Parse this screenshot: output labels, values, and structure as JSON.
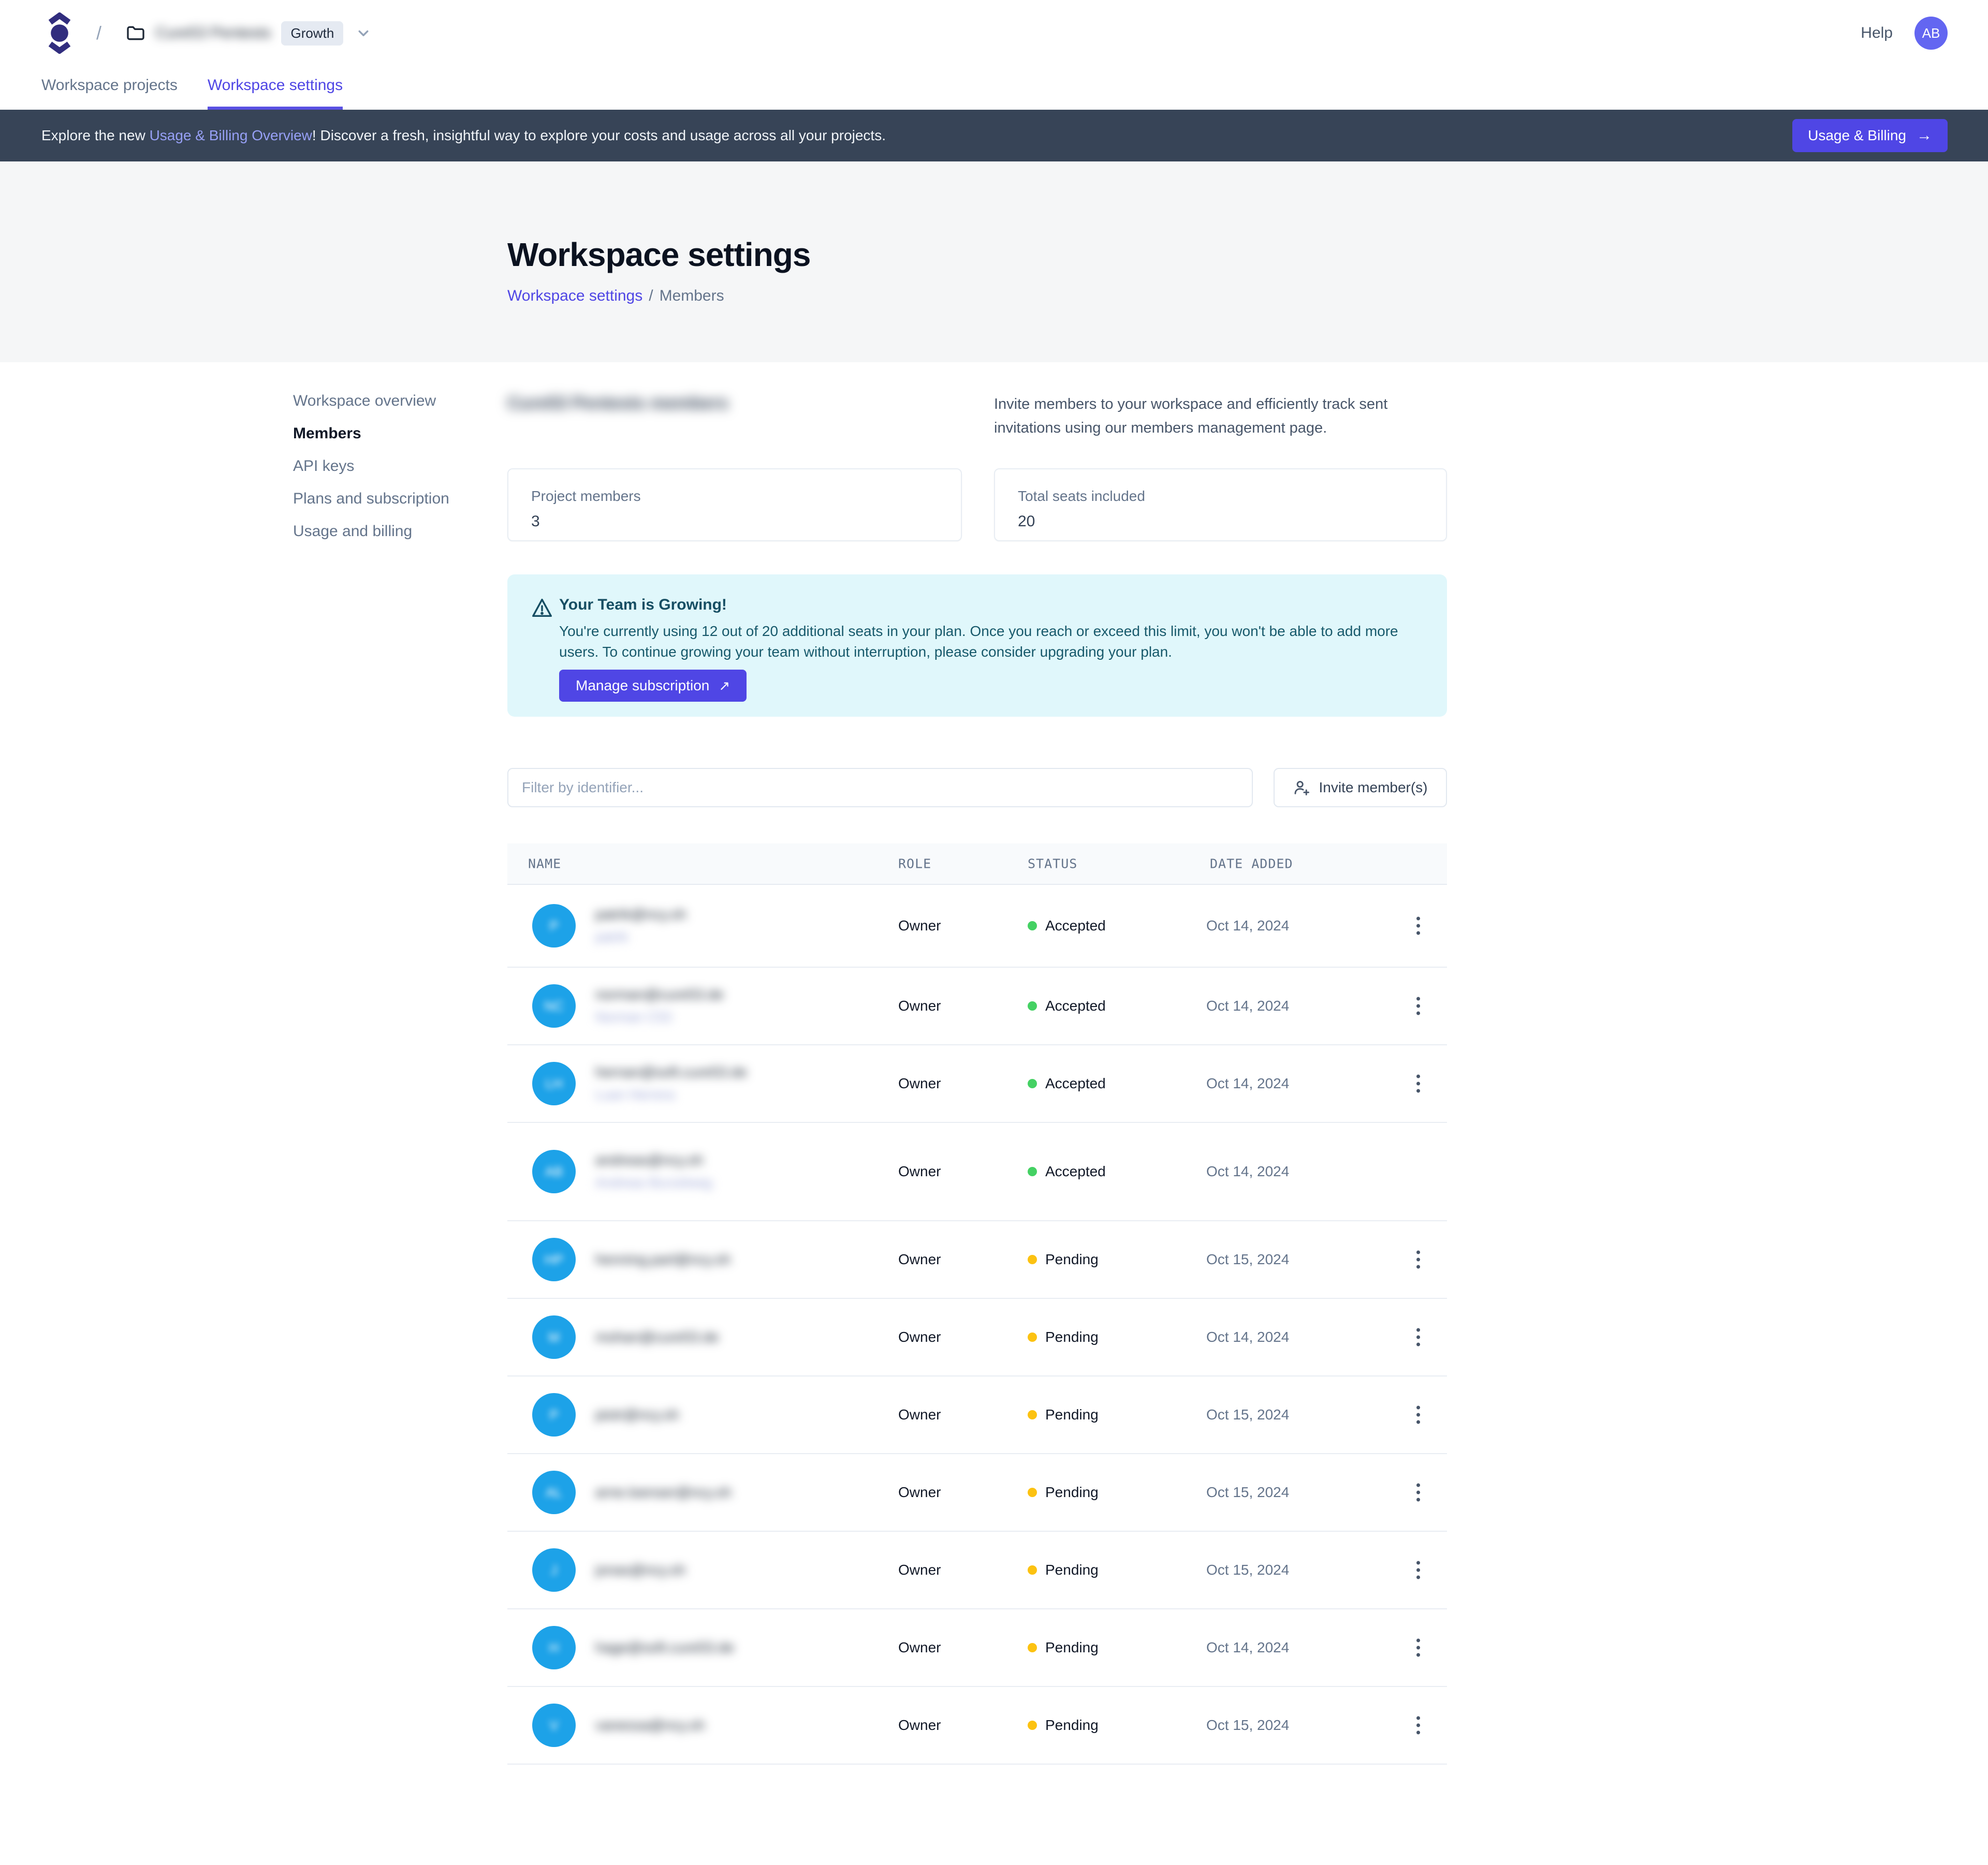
{
  "topbar": {
    "breadcrumb_slash": "/",
    "workspace_name": "Cure53 Pentests",
    "plan_badge": "Growth",
    "help_label": "Help",
    "avatar_initials": "AB"
  },
  "tabs": [
    {
      "label": "Workspace projects",
      "active": false
    },
    {
      "label": "Workspace settings",
      "active": true
    }
  ],
  "banner": {
    "text_prefix": "Explore the new ",
    "link_text": "Usage & Billing Overview",
    "text_suffix": "! Discover a fresh, insightful way to explore your costs and usage across all your projects.",
    "button_label": "Usage & Billing",
    "arrow_right": "→"
  },
  "hero": {
    "title": "Workspace settings",
    "breadcrumb_link": "Workspace settings",
    "breadcrumb_sep": "/",
    "breadcrumb_current": "Members"
  },
  "sidebar": {
    "items": [
      "Workspace overview",
      "Members",
      "API keys",
      "Plans and subscription",
      "Usage and billing"
    ],
    "active_index": 1
  },
  "members": {
    "heading": "Cure53 Pentests members",
    "description_lines": [
      "Invite members to your workspace and efficiently track sent",
      "invitations using our members management page."
    ],
    "stats": [
      {
        "label": "Project members",
        "value": "3"
      },
      {
        "label": "Total seats included",
        "value": "20"
      }
    ],
    "alert": {
      "title": "Your Team is Growing!",
      "body": "You're currently using 12 out of 20 additional seats in your plan. Once you reach or exceed this limit, you won't be able to add more users. To continue growing your team without interruption, please consider upgrading your plan.",
      "button_label": "Manage subscription",
      "arrow_up_right": "↗"
    },
    "filter_placeholder": "Filter by identifier...",
    "invite_button_label": "Invite member(s)",
    "table": {
      "columns": [
        "NAME",
        "ROLE",
        "STATUS",
        "DATE ADDED"
      ],
      "rows": [
        {
          "email": "patrik@ncy.sh",
          "username": "patrik",
          "initials": "P",
          "role": "Owner",
          "status": "Accepted",
          "date": "Oct 14, 2024",
          "menu": true
        },
        {
          "email": "norman@cure53.de",
          "username": "Norman C53",
          "initials": "NC",
          "role": "Owner",
          "status": "Accepted",
          "date": "Oct 14, 2024",
          "menu": true
        },
        {
          "email": "hernan@soft.cure53.de",
          "username": "Luan Herrera",
          "initials": "LH",
          "role": "Owner",
          "status": "Accepted",
          "date": "Oct 14, 2024",
          "menu": true
        },
        {
          "email": "andreas@ncy.sh",
          "username": "Andreas Burzelweg",
          "initials": "AB",
          "role": "Owner",
          "status": "Accepted",
          "date": "Oct 14, 2024",
          "menu": false
        },
        {
          "email": "henning.parl@ncy.sh",
          "username": "",
          "initials": "HP",
          "role": "Owner",
          "status": "Pending",
          "date": "Oct 15, 2024",
          "menu": true
        },
        {
          "email": "mohan@cure53.de",
          "username": "",
          "initials": "M",
          "role": "Owner",
          "status": "Pending",
          "date": "Oct 14, 2024",
          "menu": true
        },
        {
          "email": "piotr@ncy.sh",
          "username": "",
          "initials": "P",
          "role": "Owner",
          "status": "Pending",
          "date": "Oct 15, 2024",
          "menu": true
        },
        {
          "email": "arne.loenser@ncy.sh",
          "username": "",
          "initials": "AL",
          "role": "Owner",
          "status": "Pending",
          "date": "Oct 15, 2024",
          "menu": true
        },
        {
          "email": "jonas@ncy.sh",
          "username": "",
          "initials": "J",
          "role": "Owner",
          "status": "Pending",
          "date": "Oct 15, 2024",
          "menu": true
        },
        {
          "email": "hage@soft.cure53.de",
          "username": "",
          "initials": "H",
          "role": "Owner",
          "status": "Pending",
          "date": "Oct 14, 2024",
          "menu": true
        },
        {
          "email": "vanessa@ncy.sh",
          "username": "",
          "initials": "V",
          "role": "Owner",
          "status": "Pending",
          "date": "Oct 15, 2024",
          "menu": true
        }
      ]
    }
  },
  "colors": {
    "accent": "#4f46e5",
    "banner_bg": "#374457",
    "banner_link": "#97a0f6",
    "alert_bg": "#e0f7fb",
    "alert_text": "#164e63",
    "status_accepted": "#44d163",
    "status_pending": "#fcc211",
    "avatar_blue": "#1da2e8",
    "avatar_indigo": "#6366f1"
  }
}
